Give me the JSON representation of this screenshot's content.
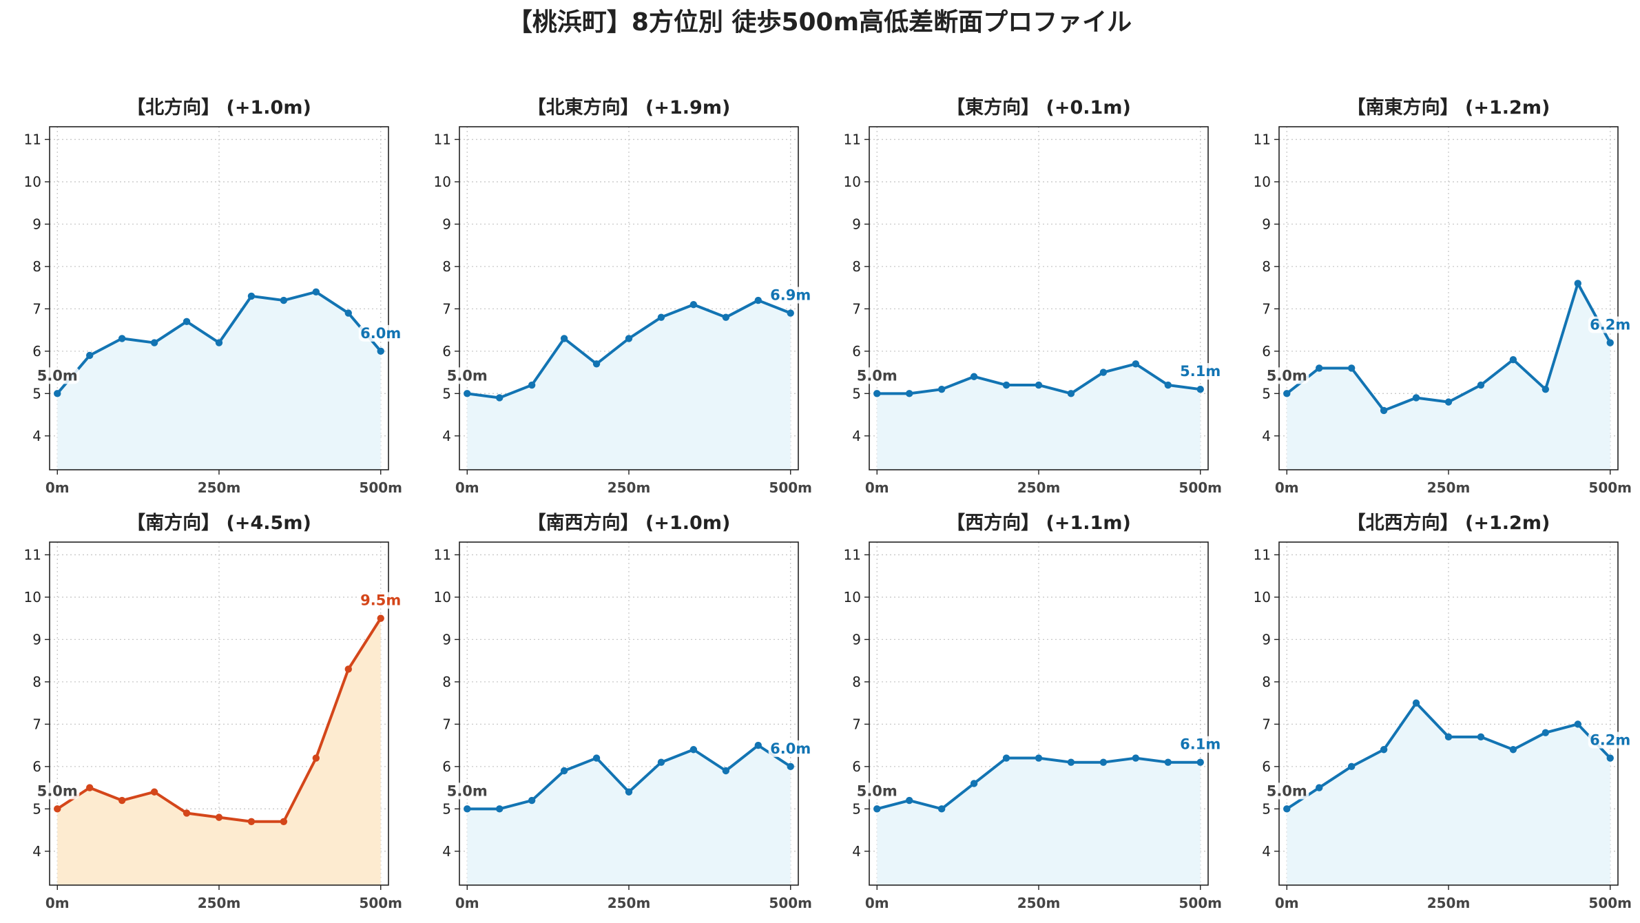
{
  "figure": {
    "title": "【桃浜町】8方位別 徒歩500m高低差断面プロファイル"
  },
  "colors": {
    "normal_line": "#1274b3",
    "normal_fill": "#eaf6fb",
    "highlight_line": "#d4461a",
    "highlight_fill": "#fdebd0",
    "start_label": "#444444",
    "grid": "#c8c8c8"
  },
  "chart_data": [
    {
      "type": "area",
      "title": "【北方向】 (+1.0m)",
      "x": [
        0,
        50,
        100,
        150,
        200,
        250,
        300,
        350,
        400,
        450,
        500
      ],
      "values": [
        5.0,
        5.9,
        6.3,
        6.2,
        6.7,
        6.2,
        7.3,
        7.2,
        7.4,
        6.9,
        6.0
      ],
      "start_label": "5.0m",
      "end_label": "6.0m",
      "highlight": false,
      "xticks": [
        "0m",
        "250m",
        "500m"
      ],
      "yticks": [
        4,
        5,
        6,
        7,
        8,
        9,
        10,
        11
      ],
      "ylim": [
        3.2,
        11.3
      ],
      "xlim": [
        -12,
        512
      ],
      "grid": true
    },
    {
      "type": "area",
      "title": "【北東方向】 (+1.9m)",
      "x": [
        0,
        50,
        100,
        150,
        200,
        250,
        300,
        350,
        400,
        450,
        500
      ],
      "values": [
        5.0,
        4.9,
        5.2,
        6.3,
        5.7,
        6.3,
        6.8,
        7.1,
        6.8,
        7.2,
        6.9
      ],
      "start_label": "5.0m",
      "end_label": "6.9m",
      "highlight": false,
      "xticks": [
        "0m",
        "250m",
        "500m"
      ],
      "yticks": [
        4,
        5,
        6,
        7,
        8,
        9,
        10,
        11
      ],
      "ylim": [
        3.2,
        11.3
      ],
      "xlim": [
        -12,
        512
      ],
      "grid": true
    },
    {
      "type": "area",
      "title": "【東方向】 (+0.1m)",
      "x": [
        0,
        50,
        100,
        150,
        200,
        250,
        300,
        350,
        400,
        450,
        500
      ],
      "values": [
        5.0,
        5.0,
        5.1,
        5.4,
        5.2,
        5.2,
        5.0,
        5.5,
        5.7,
        5.2,
        5.1
      ],
      "start_label": "5.0m",
      "end_label": "5.1m",
      "highlight": false,
      "xticks": [
        "0m",
        "250m",
        "500m"
      ],
      "yticks": [
        4,
        5,
        6,
        7,
        8,
        9,
        10,
        11
      ],
      "ylim": [
        3.2,
        11.3
      ],
      "xlim": [
        -12,
        512
      ],
      "grid": true
    },
    {
      "type": "area",
      "title": "【南東方向】 (+1.2m)",
      "x": [
        0,
        50,
        100,
        150,
        200,
        250,
        300,
        350,
        400,
        450,
        500
      ],
      "values": [
        5.0,
        5.6,
        5.6,
        4.6,
        4.9,
        4.8,
        5.2,
        5.8,
        5.1,
        7.6,
        6.2
      ],
      "start_label": "5.0m",
      "end_label": "6.2m",
      "highlight": false,
      "xticks": [
        "0m",
        "250m",
        "500m"
      ],
      "yticks": [
        4,
        5,
        6,
        7,
        8,
        9,
        10,
        11
      ],
      "ylim": [
        3.2,
        11.3
      ],
      "xlim": [
        -12,
        512
      ],
      "grid": true
    },
    {
      "type": "area",
      "title": "【南方向】 (+4.5m)",
      "x": [
        0,
        50,
        100,
        150,
        200,
        250,
        300,
        350,
        400,
        450,
        500
      ],
      "values": [
        5.0,
        5.5,
        5.2,
        5.4,
        4.9,
        4.8,
        4.7,
        4.7,
        6.2,
        8.3,
        9.5
      ],
      "start_label": "5.0m",
      "end_label": "9.5m",
      "highlight": true,
      "xticks": [
        "0m",
        "250m",
        "500m"
      ],
      "yticks": [
        4,
        5,
        6,
        7,
        8,
        9,
        10,
        11
      ],
      "ylim": [
        3.2,
        11.3
      ],
      "xlim": [
        -12,
        512
      ],
      "grid": true
    },
    {
      "type": "area",
      "title": "【南西方向】 (+1.0m)",
      "x": [
        0,
        50,
        100,
        150,
        200,
        250,
        300,
        350,
        400,
        450,
        500
      ],
      "values": [
        5.0,
        5.0,
        5.2,
        5.9,
        6.2,
        5.4,
        6.1,
        6.4,
        5.9,
        6.5,
        6.0
      ],
      "start_label": "5.0m",
      "end_label": "6.0m",
      "highlight": false,
      "xticks": [
        "0m",
        "250m",
        "500m"
      ],
      "yticks": [
        4,
        5,
        6,
        7,
        8,
        9,
        10,
        11
      ],
      "ylim": [
        3.2,
        11.3
      ],
      "xlim": [
        -12,
        512
      ],
      "grid": true
    },
    {
      "type": "area",
      "title": "【西方向】 (+1.1m)",
      "x": [
        0,
        50,
        100,
        150,
        200,
        250,
        300,
        350,
        400,
        450,
        500
      ],
      "values": [
        5.0,
        5.2,
        5.0,
        5.6,
        6.2,
        6.2,
        6.1,
        6.1,
        6.2,
        6.1,
        6.1
      ],
      "start_label": "5.0m",
      "end_label": "6.1m",
      "highlight": false,
      "xticks": [
        "0m",
        "250m",
        "500m"
      ],
      "yticks": [
        4,
        5,
        6,
        7,
        8,
        9,
        10,
        11
      ],
      "ylim": [
        3.2,
        11.3
      ],
      "xlim": [
        -12,
        512
      ],
      "grid": true
    },
    {
      "type": "area",
      "title": "【北西方向】 (+1.2m)",
      "x": [
        0,
        50,
        100,
        150,
        200,
        250,
        300,
        350,
        400,
        450,
        500
      ],
      "values": [
        5.0,
        5.5,
        6.0,
        6.4,
        7.5,
        6.7,
        6.7,
        6.4,
        6.8,
        7.0,
        6.2
      ],
      "start_label": "5.0m",
      "end_label": "6.2m",
      "highlight": false,
      "xticks": [
        "0m",
        "250m",
        "500m"
      ],
      "yticks": [
        4,
        5,
        6,
        7,
        8,
        9,
        10,
        11
      ],
      "ylim": [
        3.2,
        11.3
      ],
      "xlim": [
        -12,
        512
      ],
      "grid": true
    }
  ]
}
